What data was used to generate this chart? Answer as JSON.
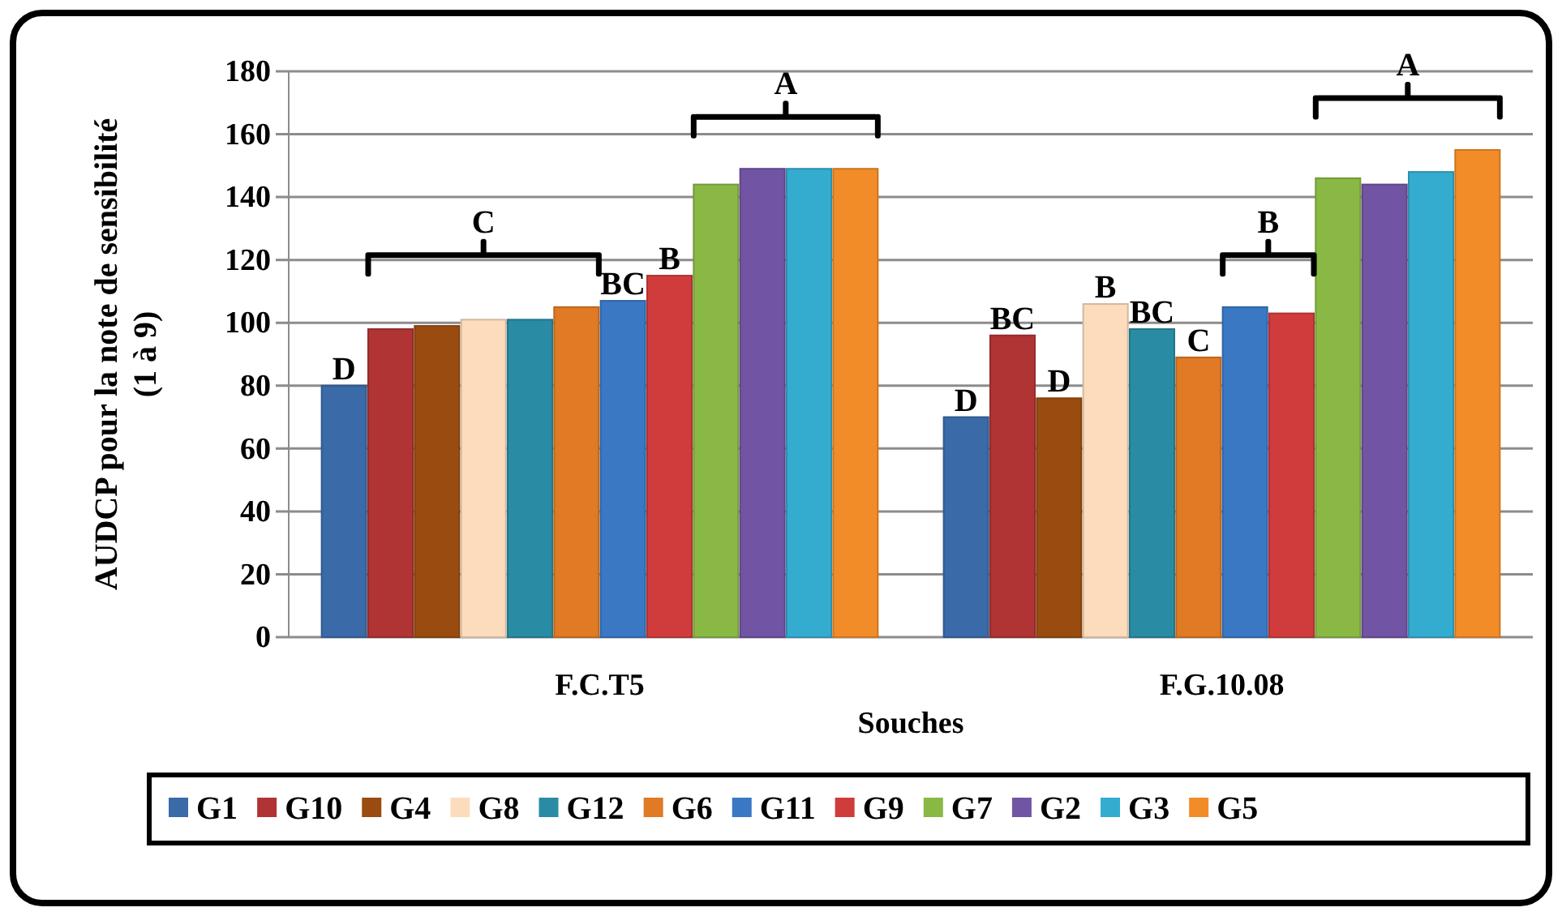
{
  "chart_data": {
    "type": "bar",
    "xlabel": "Souches",
    "ylabel": "AUDCP pour la note de sensibilité\n(1 à 9)",
    "categories": [
      "F.C.T5",
      "F.G.10.08"
    ],
    "series": [
      {
        "name": "G1",
        "color": "#3a6aa8",
        "values": [
          80,
          70
        ]
      },
      {
        "name": "G10",
        "color": "#b03434",
        "values": [
          98,
          96
        ]
      },
      {
        "name": "G4",
        "color": "#9a4c10",
        "values": [
          99,
          76
        ]
      },
      {
        "name": "G8",
        "color": "#fcdcbc",
        "values": [
          101,
          106
        ]
      },
      {
        "name": "G12",
        "color": "#2a8ca4",
        "values": [
          101,
          98
        ]
      },
      {
        "name": "G6",
        "color": "#e07a24",
        "values": [
          105,
          89
        ]
      },
      {
        "name": "G11",
        "color": "#3a78c4",
        "values": [
          107,
          105
        ]
      },
      {
        "name": "G9",
        "color": "#d03c3c",
        "values": [
          115,
          103
        ]
      },
      {
        "name": "G7",
        "color": "#8ab844",
        "values": [
          144,
          146
        ]
      },
      {
        "name": "G2",
        "color": "#7254a4",
        "values": [
          149,
          144
        ]
      },
      {
        "name": "G3",
        "color": "#34acd0",
        "values": [
          149,
          148
        ]
      },
      {
        "name": "G5",
        "color": "#f28c28",
        "values": [
          149,
          155
        ]
      }
    ],
    "ylim": [
      0,
      180
    ],
    "yticks": [
      0,
      20,
      40,
      60,
      80,
      100,
      120,
      140,
      160,
      180
    ],
    "grid": "y",
    "legend": "bottom",
    "annotations": [
      {
        "text": "D",
        "y": 80
      },
      "C",
      {
        "text": "BC",
        "y": 107
      },
      {
        "text": "B",
        "y": 115
      },
      "A",
      {
        "text": "D",
        "y": 70
      },
      {
        "text": "BC",
        "y": 96
      },
      {
        "text": "D",
        "y": 76
      },
      {
        "text": "B",
        "y": 106
      },
      {
        "text": "BC",
        "y": 98
      },
      {
        "text": "C",
        "y": 89
      },
      "B",
      "A"
    ]
  }
}
